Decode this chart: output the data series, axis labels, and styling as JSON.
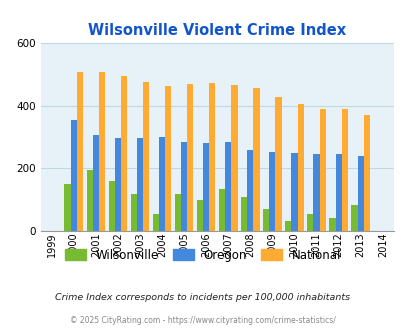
{
  "title": "Wilsonville Violent Crime Index",
  "years": [
    "1999",
    "2000",
    "2001",
    "2002",
    "2003",
    "2004",
    "2005",
    "2006",
    "2007",
    "2008",
    "2009",
    "2010",
    "2011",
    "2012",
    "2013",
    "2014"
  ],
  "data_years": [
    "2000",
    "2001",
    "2002",
    "2003",
    "2004",
    "2005",
    "2006",
    "2007",
    "2008",
    "2009",
    "2010",
    "2011",
    "2012",
    "2013"
  ],
  "wilsonville": [
    150,
    195,
    158,
    118,
    55,
    118,
    100,
    135,
    110,
    70,
    32,
    55,
    42,
    82
  ],
  "oregon": [
    355,
    305,
    298,
    298,
    300,
    285,
    280,
    285,
    258,
    253,
    248,
    245,
    245,
    238
  ],
  "national": [
    508,
    508,
    495,
    475,
    463,
    470,
    473,
    465,
    457,
    428,
    404,
    388,
    388,
    370
  ],
  "wilsonville_color": "#77bb33",
  "oregon_color": "#4488dd",
  "national_color": "#ffaa33",
  "bg_color": "#e6f2f7",
  "title_color": "#1155cc",
  "ylim": [
    0,
    600
  ],
  "yticks": [
    0,
    200,
    400,
    600
  ],
  "note_text": "Crime Index corresponds to incidents per 100,000 inhabitants",
  "footer": "© 2025 CityRating.com - https://www.cityrating.com/crime-statistics/",
  "grid_color": "#c0d8e0",
  "bar_width": 0.28
}
